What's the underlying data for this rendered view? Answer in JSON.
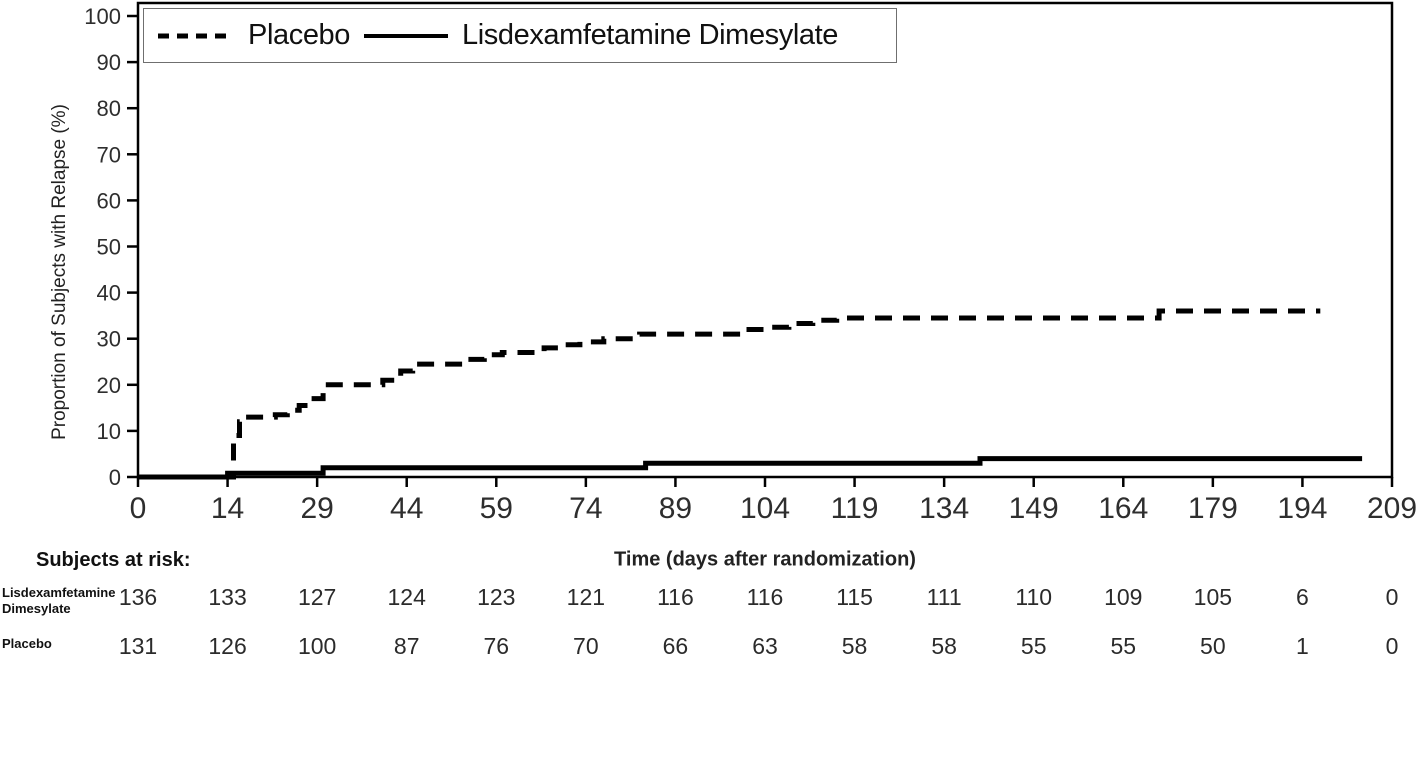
{
  "chart_data": {
    "type": "line",
    "subtype": "kaplan-meier-step",
    "title": "",
    "xlabel": "Time (days after randomization)",
    "ylabel": "Proportion of Subjects with Relapse (%)",
    "xlim": [
      0,
      209
    ],
    "ylim": [
      0,
      100
    ],
    "x_ticks": [
      0,
      14,
      29,
      44,
      59,
      74,
      89,
      104,
      119,
      134,
      149,
      164,
      179,
      194,
      209
    ],
    "y_ticks": [
      0,
      10,
      20,
      30,
      40,
      50,
      60,
      70,
      80,
      90,
      100
    ],
    "grid": false,
    "legend_position": "inside-top-left",
    "series": [
      {
        "name": "Placebo",
        "style": "dashed",
        "color": "#000000",
        "end_day": 197,
        "steps": [
          [
            0,
            0
          ],
          [
            15,
            9
          ],
          [
            16,
            12
          ],
          [
            17,
            13
          ],
          [
            22,
            13.5
          ],
          [
            24,
            14.5
          ],
          [
            26,
            15.5
          ],
          [
            28,
            17
          ],
          [
            30,
            20
          ],
          [
            40,
            21
          ],
          [
            43,
            23
          ],
          [
            45,
            24.5
          ],
          [
            54,
            25.5
          ],
          [
            57,
            26.5
          ],
          [
            60,
            27
          ],
          [
            67,
            28
          ],
          [
            70,
            28.7
          ],
          [
            73,
            29.3
          ],
          [
            77,
            30
          ],
          [
            83,
            31
          ],
          [
            100,
            32
          ],
          [
            105,
            32.5
          ],
          [
            108,
            33.3
          ],
          [
            112,
            34
          ],
          [
            116,
            34.5
          ],
          [
            170,
            36
          ]
        ]
      },
      {
        "name": "Lisdexamfetamine Dimesylate",
        "style": "solid",
        "color": "#000000",
        "end_day": 204,
        "steps": [
          [
            0,
            0
          ],
          [
            14,
            0.8
          ],
          [
            30,
            2
          ],
          [
            84,
            3
          ],
          [
            140,
            4
          ]
        ]
      }
    ]
  },
  "legend": {
    "items": [
      {
        "label": "Placebo",
        "style": "dashed"
      },
      {
        "label": "Lisdexamfetamine Dimesylate",
        "style": "solid"
      }
    ]
  },
  "at_risk": {
    "header": "Subjects at risk:",
    "rows": [
      {
        "label_lines": [
          "Lisdexamfetamine",
          "Dimesylate"
        ],
        "values": [
          136,
          133,
          127,
          124,
          123,
          121,
          116,
          116,
          115,
          111,
          110,
          109,
          105,
          6,
          0
        ]
      },
      {
        "label_lines": [
          "Placebo"
        ],
        "values": [
          131,
          126,
          100,
          87,
          76,
          70,
          66,
          63,
          58,
          58,
          55,
          55,
          50,
          1,
          0
        ]
      }
    ]
  },
  "colors": {
    "curve": "#000000",
    "frame": "#000000",
    "tick_text": "#2e2e2e",
    "at_risk_text": "#2b2b2b",
    "legend_border": "#6f6f6f"
  }
}
